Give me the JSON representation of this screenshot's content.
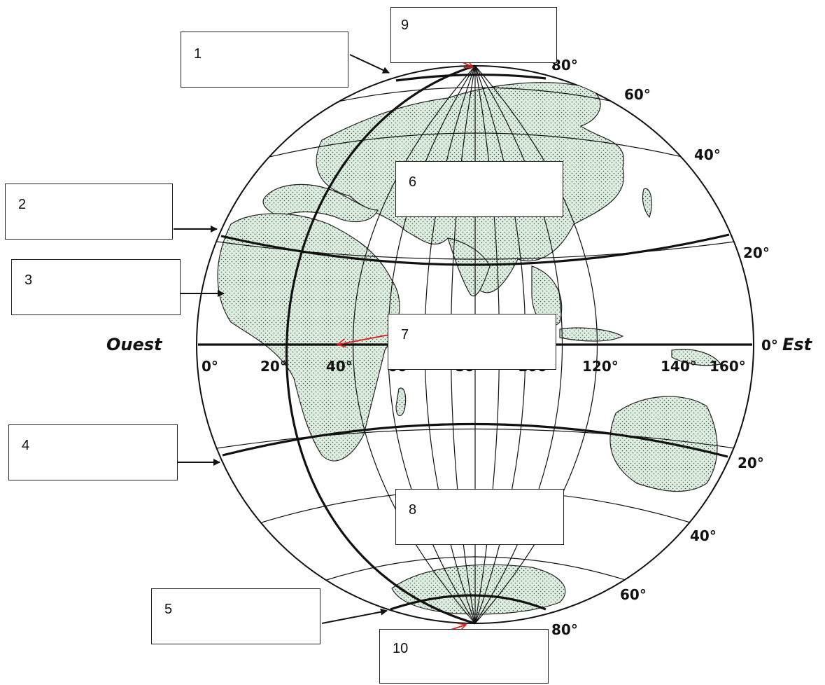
{
  "directions": {
    "west": "Ouest",
    "east": "Est"
  },
  "latitude_labels": {
    "north_80": "80°",
    "north_60": "60°",
    "north_40": "40°",
    "north_20": "20°",
    "equator_0": "0°",
    "south_20": "20°",
    "south_40": "40°",
    "south_60": "60°",
    "south_80": "80°"
  },
  "longitude_labels": [
    "0°",
    "20°",
    "40°",
    "60°",
    "80°",
    "100°",
    "120°",
    "140°",
    "160°"
  ],
  "boxes": [
    {
      "number": "1"
    },
    {
      "number": "2"
    },
    {
      "number": "3"
    },
    {
      "number": "4"
    },
    {
      "number": "5"
    },
    {
      "number": "6"
    },
    {
      "number": "7"
    },
    {
      "number": "8"
    },
    {
      "number": "9"
    },
    {
      "number": "10"
    }
  ],
  "colors": {
    "land": "#dcefe0",
    "red_arrow": "#e01818",
    "ink": "#111111"
  }
}
